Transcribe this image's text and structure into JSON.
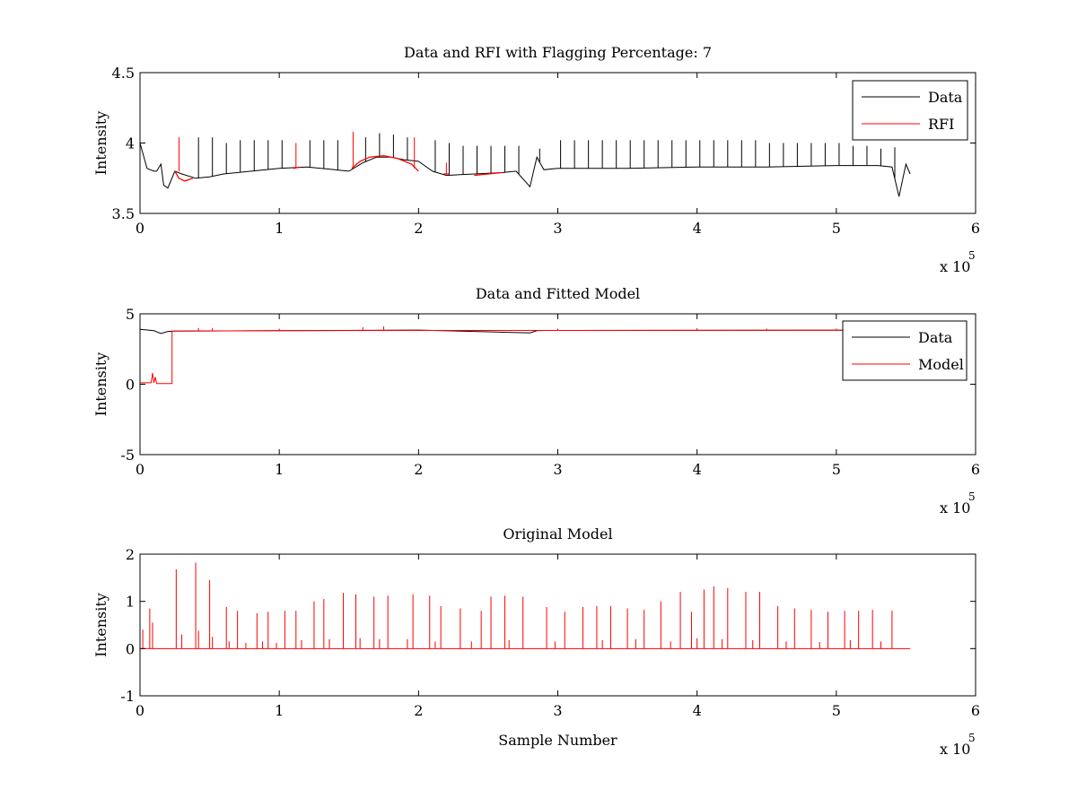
{
  "chart_data": [
    {
      "type": "line",
      "title": "Data and RFI with Flagging Percentage: 7",
      "xlabel": "",
      "ylabel": "Intensity",
      "xlim": [
        0,
        600000
      ],
      "ylim": [
        3.5,
        4.5
      ],
      "xticks": [
        0,
        1,
        2,
        3,
        4,
        5,
        6
      ],
      "yticks": [
        3.5,
        4,
        4.5
      ],
      "xtick_labels": [
        "0",
        "1",
        "2",
        "3",
        "4",
        "5",
        "6"
      ],
      "ytick_labels": [
        "3.5",
        "4",
        "4.5"
      ],
      "x_exponent": {
        "base": "x 10",
        "power": "5"
      },
      "legend_position": "top-right",
      "grid": false,
      "series": [
        {
          "name": "Data",
          "color": "#000000",
          "x": [
            0,
            5000,
            10000,
            12000,
            15000,
            17000,
            20000,
            25000,
            30000,
            40000,
            50000,
            60000,
            80000,
            100000,
            120000,
            140000,
            150000,
            160000,
            170000,
            180000,
            190000,
            200000,
            210000,
            220000,
            240000,
            260000,
            270000,
            280000,
            285000,
            290000,
            300000,
            350000,
            400000,
            450000,
            500000,
            530000,
            540000,
            545000,
            550000,
            553000
          ],
          "y": [
            4.0,
            3.82,
            3.8,
            3.8,
            3.85,
            3.7,
            3.68,
            3.8,
            3.78,
            3.75,
            3.76,
            3.78,
            3.8,
            3.82,
            3.83,
            3.81,
            3.8,
            3.86,
            3.9,
            3.9,
            3.88,
            3.87,
            3.8,
            3.77,
            3.78,
            3.79,
            3.8,
            3.69,
            3.9,
            3.81,
            3.82,
            3.82,
            3.83,
            3.83,
            3.84,
            3.84,
            3.83,
            3.62,
            3.85,
            3.78
          ],
          "spikes": [
            [
              42000,
              4.04
            ],
            [
              52000,
              4.04
            ],
            [
              62000,
              4.0
            ],
            [
              72000,
              4.02
            ],
            [
              82000,
              4.02
            ],
            [
              92000,
              4.02
            ],
            [
              102000,
              4.02
            ],
            [
              122000,
              4.02
            ],
            [
              132000,
              4.02
            ],
            [
              142000,
              4.02
            ],
            [
              162000,
              4.04
            ],
            [
              172000,
              4.07
            ],
            [
              182000,
              4.06
            ],
            [
              192000,
              4.04
            ],
            [
              212000,
              4.02
            ],
            [
              222000,
              4.0
            ],
            [
              232000,
              3.98
            ],
            [
              242000,
              3.98
            ],
            [
              252000,
              3.98
            ],
            [
              262000,
              3.98
            ],
            [
              272000,
              3.98
            ],
            [
              287000,
              3.96
            ],
            [
              302000,
              4.02
            ],
            [
              312000,
              4.02
            ],
            [
              322000,
              4.02
            ],
            [
              332000,
              4.02
            ],
            [
              342000,
              4.02
            ],
            [
              352000,
              4.02
            ],
            [
              362000,
              4.02
            ],
            [
              372000,
              4.02
            ],
            [
              382000,
              4.02
            ],
            [
              392000,
              4.02
            ],
            [
              402000,
              4.02
            ],
            [
              412000,
              4.02
            ],
            [
              422000,
              4.02
            ],
            [
              432000,
              4.02
            ],
            [
              442000,
              4.02
            ],
            [
              452000,
              4.0
            ],
            [
              462000,
              4.0
            ],
            [
              472000,
              4.0
            ],
            [
              482000,
              4.0
            ],
            [
              492000,
              4.0
            ],
            [
              502000,
              4.0
            ],
            [
              512000,
              3.98
            ],
            [
              522000,
              3.98
            ],
            [
              532000,
              3.96
            ],
            [
              542000,
              3.97
            ]
          ]
        },
        {
          "name": "RFI",
          "color": "#ff0000",
          "segments": [
            {
              "x": [
                25000,
                28000,
                32000,
                38000
              ],
              "y": [
                3.8,
                3.75,
                3.73,
                3.75
              ]
            },
            {
              "x": [
                110000,
                115000
              ],
              "y": [
                3.82,
                3.83
              ]
            },
            {
              "x": [
                152000,
                158000,
                165000,
                175000,
                185000,
                195000,
                200000
              ],
              "y": [
                3.82,
                3.87,
                3.9,
                3.91,
                3.89,
                3.85,
                3.8
              ]
            },
            {
              "x": [
                218000,
                222000
              ],
              "y": [
                3.78,
                3.78
              ]
            },
            {
              "x": [
                240000,
                250000,
                260000
              ],
              "y": [
                3.77,
                3.78,
                3.79
              ]
            }
          ],
          "spikes": [
            [
              28000,
              4.04
            ],
            [
              112000,
              4.0
            ],
            [
              153000,
              4.08
            ],
            [
              197000,
              4.04
            ],
            [
              220000,
              3.86
            ]
          ]
        }
      ]
    },
    {
      "type": "line",
      "title": "Data and Fitted Model",
      "xlabel": "",
      "ylabel": "Intensity",
      "xlim": [
        0,
        600000
      ],
      "ylim": [
        -5,
        5
      ],
      "xticks": [
        0,
        1,
        2,
        3,
        4,
        5,
        6
      ],
      "yticks": [
        -5,
        0,
        5
      ],
      "xtick_labels": [
        "0",
        "1",
        "2",
        "3",
        "4",
        "5",
        "6"
      ],
      "ytick_labels": [
        "-5",
        "0",
        "5"
      ],
      "x_exponent": {
        "base": "x 10",
        "power": "5"
      },
      "legend_position": "top-right",
      "grid": false,
      "series": [
        {
          "name": "Data",
          "color": "#000000",
          "x": [
            0,
            10000,
            15000,
            20000,
            25000,
            100000,
            200000,
            280000,
            285000,
            290000,
            400000,
            500000,
            550000
          ],
          "y": [
            3.9,
            3.8,
            3.6,
            3.75,
            3.78,
            3.8,
            3.85,
            3.65,
            3.8,
            3.82,
            3.83,
            3.84,
            3.8
          ]
        },
        {
          "name": "Model",
          "color": "#ff0000",
          "x": [
            0,
            8000,
            9000,
            10000,
            11000,
            12000,
            23000,
            23001,
            100000,
            200000,
            300000,
            400000,
            500000,
            550000
          ],
          "y": [
            0.1,
            0.1,
            0.8,
            0.1,
            0.5,
            0.05,
            0.05,
            3.78,
            3.8,
            3.82,
            3.82,
            3.83,
            3.84,
            3.8
          ],
          "spikes": [
            [
              42000,
              4.0
            ],
            [
              52000,
              4.0
            ],
            [
              100000,
              3.95
            ],
            [
              160000,
              4.05
            ],
            [
              175000,
              4.1
            ],
            [
              300000,
              3.95
            ],
            [
              400000,
              3.98
            ],
            [
              450000,
              3.95
            ],
            [
              500000,
              3.96
            ]
          ]
        }
      ]
    },
    {
      "type": "line",
      "title": "Original Model",
      "xlabel": "Sample Number",
      "ylabel": "Intensity",
      "xlim": [
        0,
        600000
      ],
      "ylim": [
        -1,
        2
      ],
      "xticks": [
        0,
        1,
        2,
        3,
        4,
        5,
        6
      ],
      "yticks": [
        -1,
        0,
        1,
        2
      ],
      "xtick_labels": [
        "0",
        "1",
        "2",
        "3",
        "4",
        "5",
        "6"
      ],
      "ytick_labels": [
        "-1",
        "0",
        "1",
        "2"
      ],
      "x_exponent": {
        "base": "x 10",
        "power": "5"
      },
      "grid": false,
      "series": [
        {
          "color": "#ff0000",
          "baseline": 0,
          "x_range": [
            0,
            553000
          ],
          "spikes": [
            [
              2000,
              0.4
            ],
            [
              7000,
              0.85
            ],
            [
              9000,
              0.55
            ],
            [
              26000,
              1.68
            ],
            [
              40000,
              1.82
            ],
            [
              50000,
              1.45
            ],
            [
              62000,
              0.88
            ],
            [
              70000,
              0.8
            ],
            [
              84000,
              0.75
            ],
            [
              92000,
              0.78
            ],
            [
              104000,
              0.8
            ],
            [
              112000,
              0.8
            ],
            [
              125000,
              1.0
            ],
            [
              132000,
              1.05
            ],
            [
              146000,
              1.18
            ],
            [
              155000,
              1.15
            ],
            [
              168000,
              1.1
            ],
            [
              178000,
              1.12
            ],
            [
              196000,
              1.15
            ],
            [
              208000,
              1.12
            ],
            [
              216000,
              0.9
            ],
            [
              230000,
              0.85
            ],
            [
              245000,
              0.8
            ],
            [
              252000,
              1.1
            ],
            [
              262000,
              1.12
            ],
            [
              275000,
              1.1
            ],
            [
              292000,
              0.88
            ],
            [
              305000,
              0.78
            ],
            [
              318000,
              0.88
            ],
            [
              328000,
              0.9
            ],
            [
              338000,
              0.9
            ],
            [
              350000,
              0.85
            ],
            [
              362000,
              0.82
            ],
            [
              374000,
              1.0
            ],
            [
              388000,
              1.2
            ],
            [
              396000,
              0.78
            ],
            [
              405000,
              1.25
            ],
            [
              412000,
              1.32
            ],
            [
              422000,
              1.28
            ],
            [
              435000,
              1.2
            ],
            [
              445000,
              1.2
            ],
            [
              458000,
              0.9
            ],
            [
              470000,
              0.85
            ],
            [
              482000,
              0.82
            ],
            [
              494000,
              0.78
            ],
            [
              506000,
              0.8
            ],
            [
              516000,
              0.8
            ],
            [
              526000,
              0.82
            ],
            [
              540000,
              0.8
            ]
          ],
          "small_spikes": [
            [
              30000,
              0.3
            ],
            [
              42000,
              0.38
            ],
            [
              52000,
              0.25
            ],
            [
              64000,
              0.15
            ],
            [
              76000,
              0.12
            ],
            [
              88000,
              0.15
            ],
            [
              98000,
              0.12
            ],
            [
              116000,
              0.18
            ],
            [
              136000,
              0.2
            ],
            [
              158000,
              0.22
            ],
            [
              172000,
              0.2
            ],
            [
              192000,
              0.2
            ],
            [
              212000,
              0.15
            ],
            [
              238000,
              0.15
            ],
            [
              265000,
              0.18
            ],
            [
              298000,
              0.15
            ],
            [
              332000,
              0.18
            ],
            [
              356000,
              0.2
            ],
            [
              381000,
              0.15
            ],
            [
              400000,
              0.22
            ],
            [
              418000,
              0.2
            ],
            [
              440000,
              0.18
            ],
            [
              464000,
              0.15
            ],
            [
              488000,
              0.14
            ],
            [
              510000,
              0.18
            ],
            [
              532000,
              0.15
            ]
          ]
        }
      ]
    }
  ]
}
